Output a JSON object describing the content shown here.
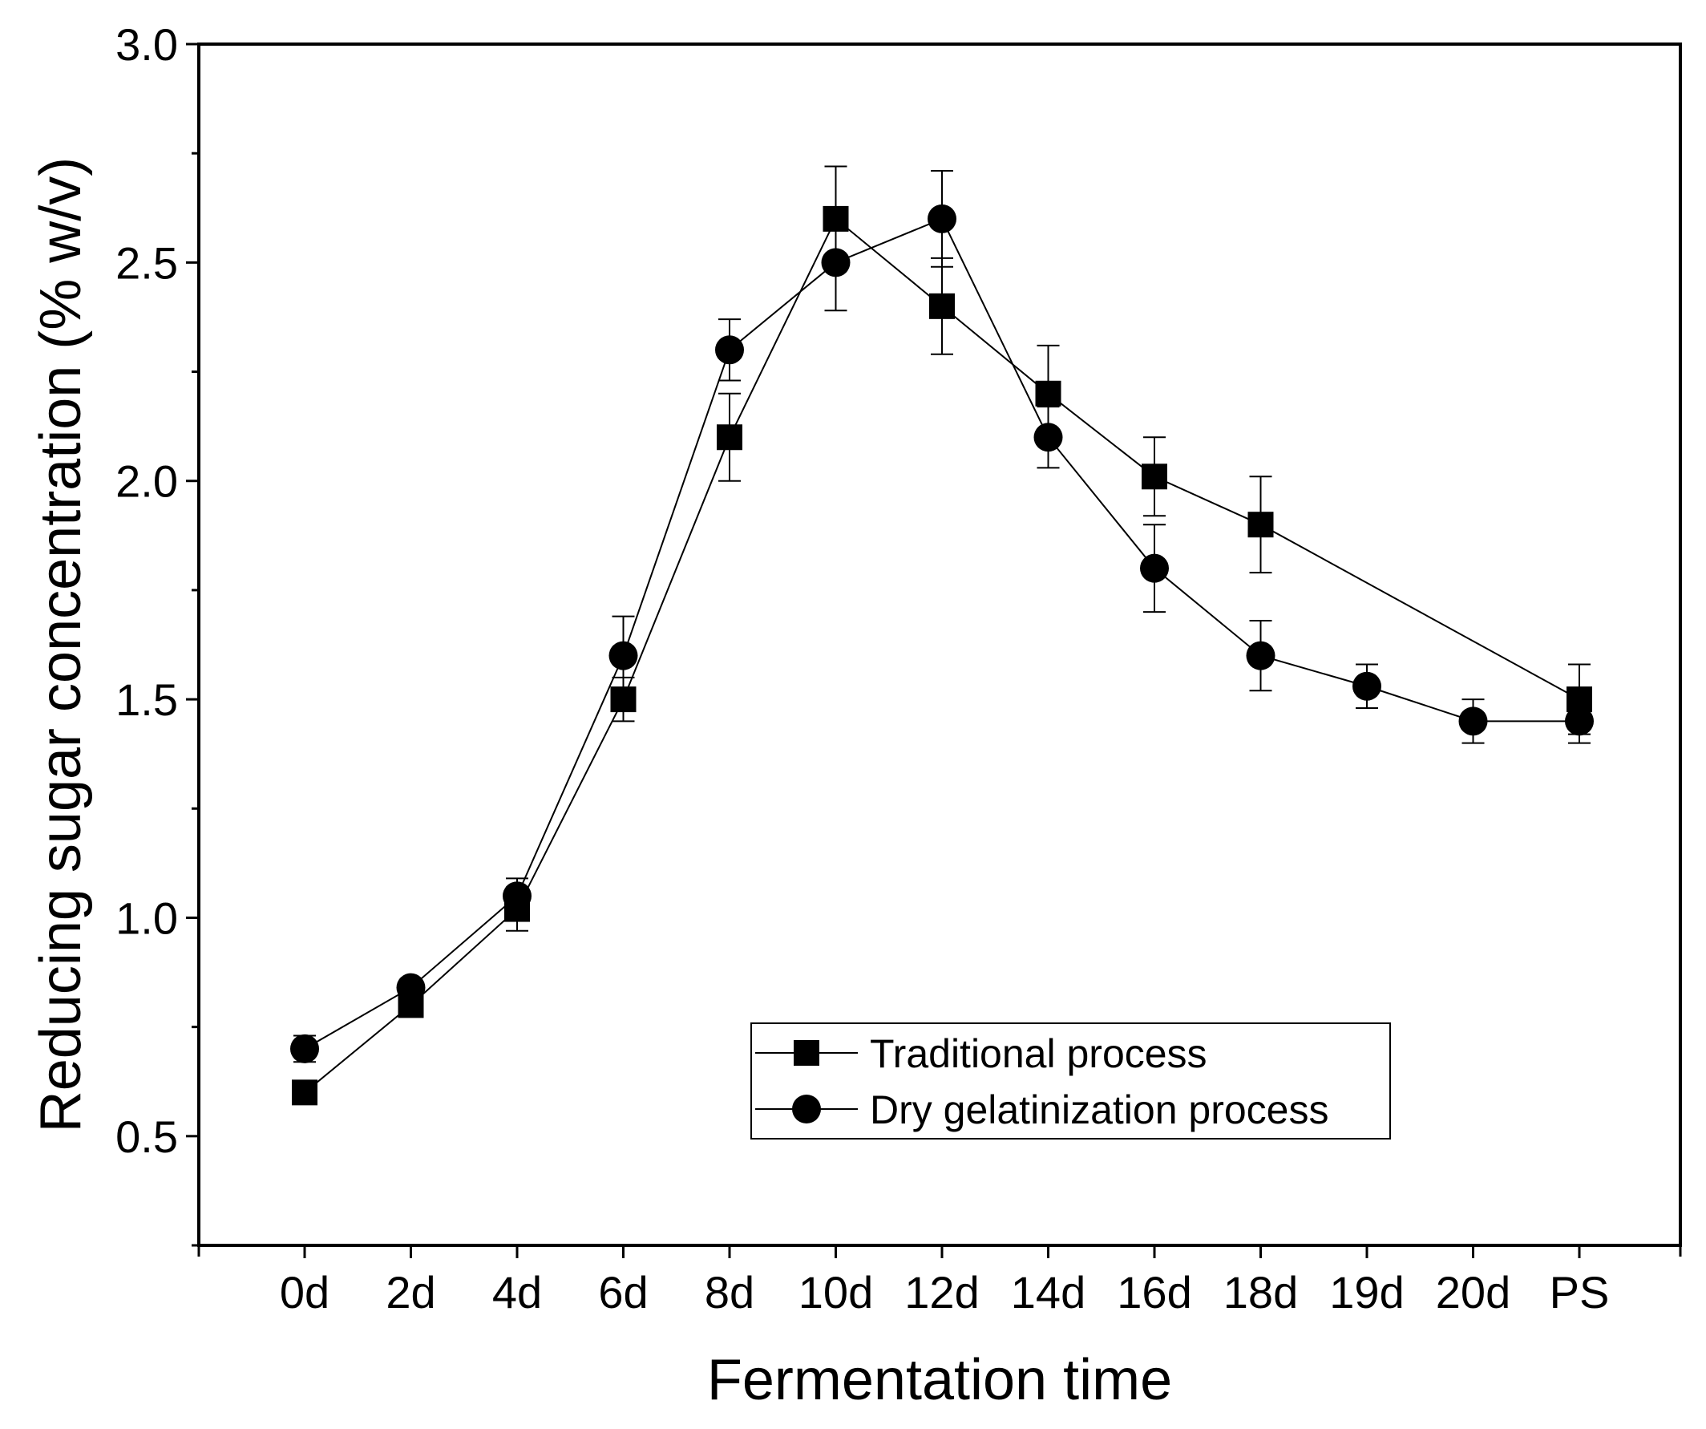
{
  "chart_data": {
    "type": "line",
    "xlabel": "Fermentation time",
    "ylabel": "Reducing sugar concentration (% w/v)",
    "ylim": [
      0.25,
      3.0
    ],
    "yticks": [
      "0.5",
      "1.0",
      "1.5",
      "2.0",
      "2.5",
      "3.0"
    ],
    "categories": [
      "0d",
      "2d",
      "4d",
      "6d",
      "8d",
      "10d",
      "12d",
      "14d",
      "16d",
      "18d",
      "19d",
      "20d",
      "PS"
    ],
    "grid": false,
    "legend_position": "bottom-center",
    "series": [
      {
        "name": "Traditional process",
        "marker": "square",
        "color": "#000000",
        "values": [
          0.6,
          0.8,
          1.02,
          1.5,
          2.1,
          2.6,
          2.4,
          2.2,
          2.01,
          1.9,
          null,
          null,
          1.5
        ],
        "errors": [
          0.0,
          0.0,
          0.05,
          0.05,
          0.1,
          0.12,
          0.11,
          0.11,
          0.09,
          0.11,
          null,
          null,
          0.08
        ]
      },
      {
        "name": "Dry gelatinization process",
        "marker": "circle",
        "color": "#000000",
        "values": [
          0.7,
          0.84,
          1.05,
          1.6,
          2.3,
          2.5,
          2.6,
          2.1,
          1.8,
          1.6,
          1.53,
          1.45,
          1.45
        ],
        "errors": [
          0.03,
          0.02,
          0.04,
          0.09,
          0.07,
          0.11,
          0.11,
          0.07,
          0.1,
          0.08,
          0.05,
          0.05,
          0.05
        ]
      }
    ]
  }
}
